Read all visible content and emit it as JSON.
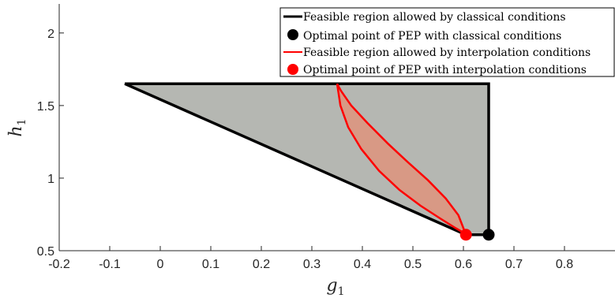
{
  "chart_data": {
    "type": "line",
    "title": "",
    "xlabel": {
      "base": "g",
      "sub": "1"
    },
    "ylabel": {
      "base": "h",
      "sub": "1"
    },
    "xlim": [
      -0.2,
      0.9
    ],
    "ylim": [
      0.5,
      2.2
    ],
    "xticks": [
      -0.2,
      -0.1,
      0,
      0.1,
      0.2,
      0.3,
      0.4,
      0.5,
      0.6,
      0.7,
      0.8
    ],
    "xtick_labels": [
      "-0.2",
      "-0.1",
      "0",
      "0.1",
      "0.2",
      "0.3",
      "0.4",
      "0.5",
      "0.6",
      "0.7",
      "0.8"
    ],
    "yticks": [
      0.5,
      1,
      1.5,
      2
    ],
    "ytick_labels": [
      "0.5",
      "1",
      "1.5",
      "2"
    ],
    "grid": false,
    "legend_position": "top-right",
    "colors": {
      "classical": "#000000",
      "classical_fill": "#b5b7b2",
      "interpolation": "#ff0000",
      "interpolation_fill": "#d89985"
    },
    "series": [
      {
        "name": "Feasible region allowed by classical conditions",
        "kind": "region",
        "x": [
          -0.07,
          0.65,
          0.65,
          0.605,
          -0.07
        ],
        "y": [
          1.65,
          1.65,
          0.61,
          0.61,
          1.65
        ]
      },
      {
        "name": "Optimal point of PEP with classical conditions",
        "kind": "point",
        "x": [
          0.65
        ],
        "y": [
          0.61
        ]
      },
      {
        "name": "Feasible region allowed by interpolation conditions",
        "kind": "region",
        "x": [
          0.35,
          0.3565,
          0.372,
          0.398,
          0.433,
          0.473,
          0.515,
          0.555,
          0.585,
          0.6,
          0.605,
          0.605,
          0.59,
          0.565,
          0.53,
          0.49,
          0.45,
          0.41,
          0.378,
          0.358,
          0.35
        ],
        "y": [
          1.65,
          1.5,
          1.35,
          1.2,
          1.05,
          0.92,
          0.81,
          0.72,
          0.655,
          0.625,
          0.61,
          0.61,
          0.745,
          0.86,
          0.985,
          1.11,
          1.24,
          1.38,
          1.5,
          1.6,
          1.65
        ]
      },
      {
        "name": "Optimal point of PEP with interpolation conditions",
        "kind": "point",
        "x": [
          0.605
        ],
        "y": [
          0.61
        ]
      }
    ]
  }
}
